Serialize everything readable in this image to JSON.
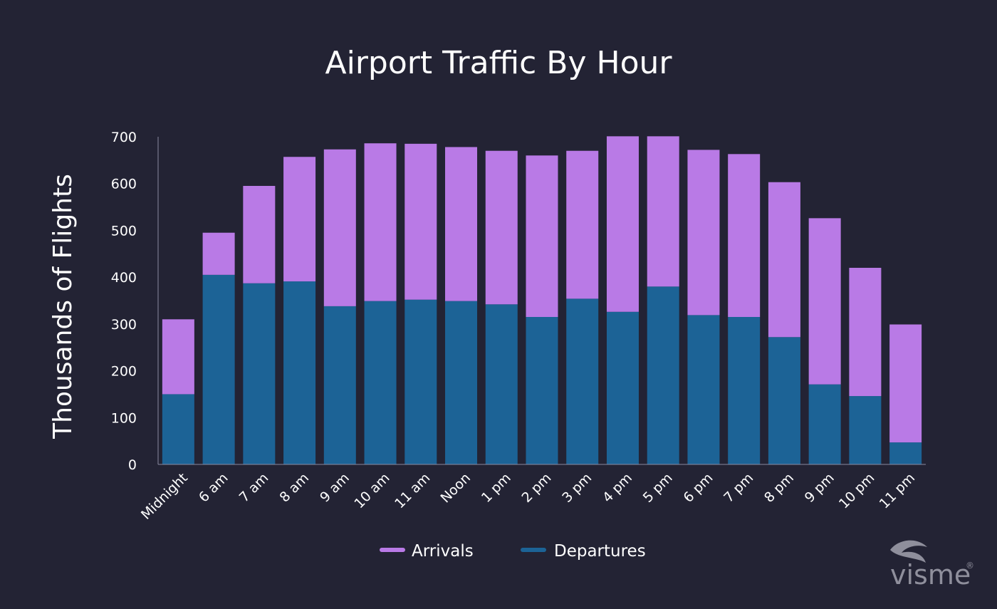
{
  "chart_data": {
    "type": "bar",
    "stacked": true,
    "title": "Airport Traffic By Hour",
    "ylabel": "Thousands of Flights",
    "xlabel": "",
    "ylim": [
      0,
      700
    ],
    "yticks": [
      0,
      100,
      200,
      300,
      400,
      500,
      600,
      700
    ],
    "categories": [
      "Midnight",
      "6 am",
      "7 am",
      "8 am",
      "9 am",
      "10 am",
      "11 am",
      "Noon",
      "1 pm",
      "2 pm",
      "3 pm",
      "4 pm",
      "5 pm",
      "6 pm",
      "7 pm",
      "8 pm",
      "9 pm",
      "10 pm",
      "11 pm"
    ],
    "series": [
      {
        "name": "Departures",
        "color": "#1c6396",
        "values": [
          150,
          405,
          387,
          391,
          338,
          349,
          352,
          349,
          342,
          315,
          354,
          326,
          380,
          319,
          315,
          272,
          171,
          146,
          47
        ]
      },
      {
        "name": "Arrivals",
        "color": "#b97ae6",
        "values": [
          160,
          90,
          208,
          266,
          335,
          337,
          333,
          329,
          328,
          345,
          316,
          375,
          321,
          353,
          348,
          331,
          355,
          274,
          252
        ]
      }
    ],
    "legend": {
      "position": "bottom",
      "items": [
        {
          "label": "Arrivals",
          "color": "#b97ae6"
        },
        {
          "label": "Departures",
          "color": "#1c6396"
        }
      ]
    },
    "grid": false
  },
  "branding": {
    "logo_text": "visme",
    "logo_mark": "®",
    "logo_icon": "visme-eye-icon"
  }
}
